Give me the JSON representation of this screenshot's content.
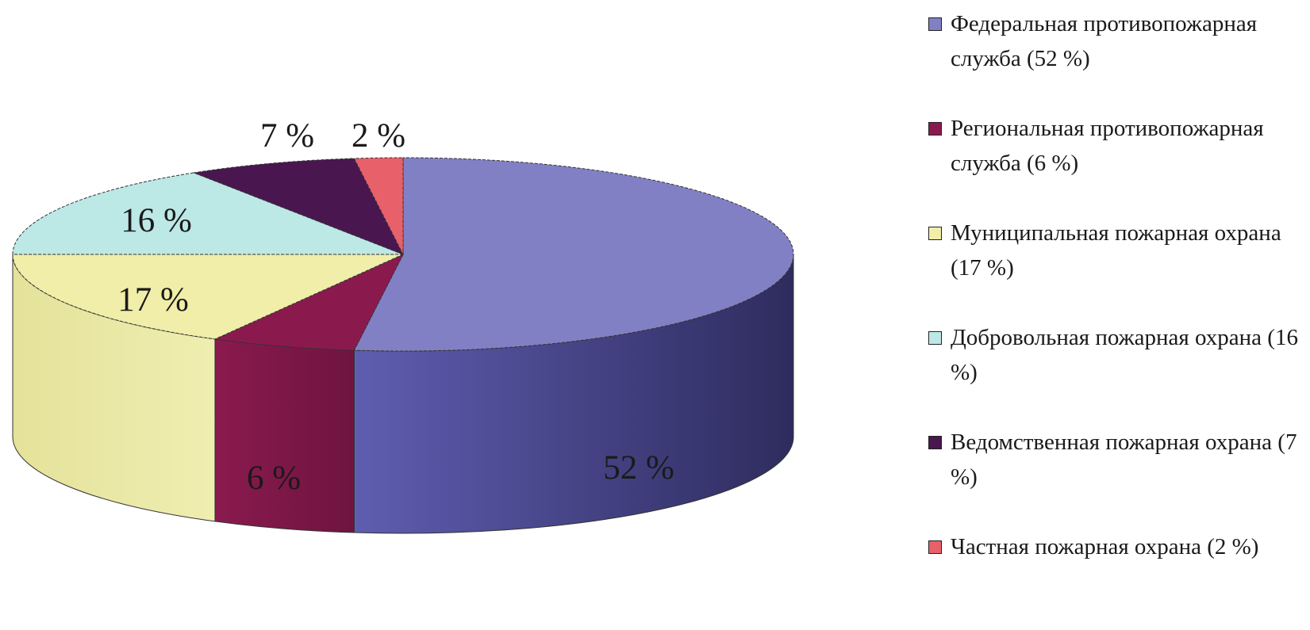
{
  "chart_data": {
    "type": "pie",
    "slices": [
      {
        "label": "Федеральная противопожарная служба (52 %)",
        "value": 52,
        "value_label": "52 %",
        "color": "#8280c4"
      },
      {
        "label": "Региональная противопожарная служба (6 %)",
        "value": 6,
        "value_label": "6 %",
        "color": "#8a1a4e"
      },
      {
        "label": "Муниципальная пожарная охрана (17 %)",
        "value": 17,
        "value_label": "17 %",
        "color": "#f0eea8"
      },
      {
        "label": "Добровольная пожарная охрана (16 %)",
        "value": 16,
        "value_label": "16 %",
        "color": "#bce8e6"
      },
      {
        "label": "Ведомственная пожарная охрана (7 %)",
        "value": 7,
        "value_label": "7 %",
        "color": "#4a1650"
      },
      {
        "label": "Частная пожарная охрана (2 %)",
        "value": 2,
        "value_label": "2 %",
        "color": "#e8606a"
      }
    ],
    "style": "3d",
    "legend_position": "right"
  }
}
